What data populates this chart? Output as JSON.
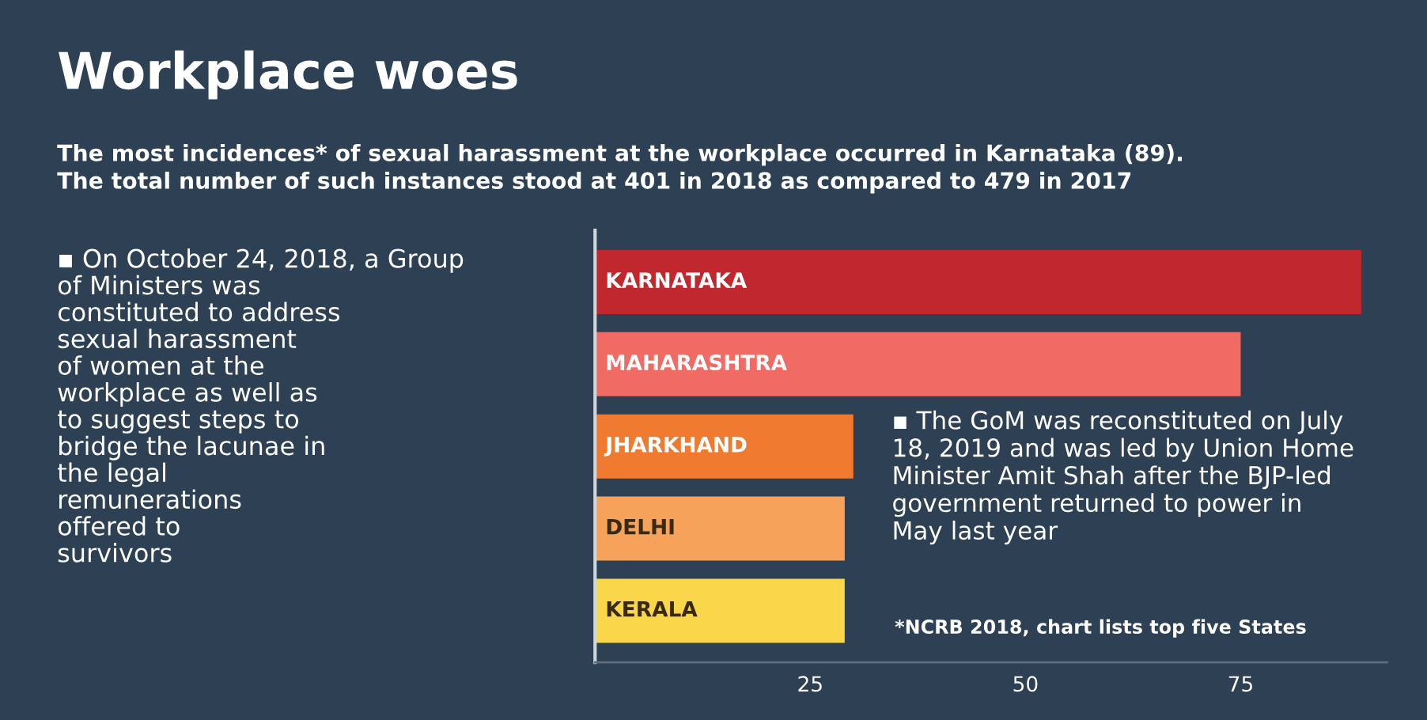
{
  "chart_data": {
    "type": "bar",
    "orientation": "horizontal",
    "title": "Workplace woes",
    "subtitle": "The most incidences* of sexual harassment at the workplace occurred in Karnataka (89).\nThe total number of such instances stood at 401 in 2018 as compared to 479 in 2017",
    "categories": [
      "KARNATAKA",
      "MAHARASHTRA",
      "JHARKHAND",
      "DELHI",
      "KERALA"
    ],
    "values": [
      89,
      75,
      30,
      29,
      29
    ],
    "colors": [
      "#c0282d",
      "#ef6b64",
      "#f07a30",
      "#f7a25a",
      "#f9d64a"
    ],
    "xlim": [
      0,
      92
    ],
    "xticks": [
      25,
      50,
      75
    ],
    "annotations": [
      "▪ On October 24, 2018, a Group\nof Ministers was\nconstituted to address\nsexual harassment\nof women at the\nworkplace as well as\nto suggest steps to\nbridge the lacunae in\nthe legal\nremunerations\noffered to\nsurvivors",
      "▪ The GoM was reconstituted on July\n18, 2019 and was led by Union Home\nMinister Amit Shah after the BJP-led\ngovernment returned to power in\nMay last year",
      "*NCRB 2018, chart lists top five States"
    ]
  }
}
